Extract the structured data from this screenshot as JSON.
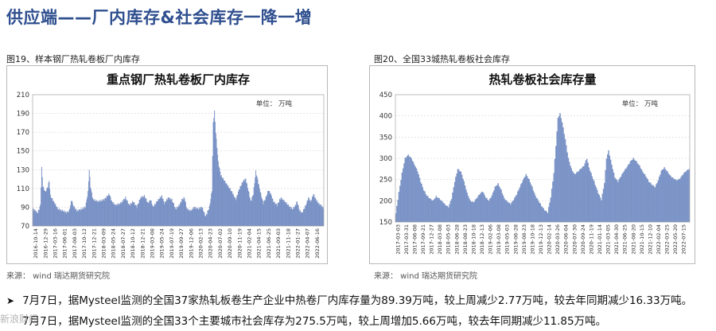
{
  "page_title": "供应端——厂内库存&社会库存一降一增",
  "figures": [
    {
      "caption": "图19、样本钢厂热轧卷板厂内库存",
      "source": "来源：  wind    瑞达期货研究院"
    },
    {
      "caption": "图20、全国33城热轧卷板社会库存",
      "source": "来源：  wind    瑞达期货研究院"
    }
  ],
  "bullets": [
    "7月7日，据Mysteel监测的全国37家热轧板卷生产企业中热卷厂内库存量为89.39万吨，较上周减少2.77万吨，较去年同期减少16.33万吨。",
    "7月7日，据Mysteel监测的全国33个主要城市社会库存为275.5万吨，较上周增加5.66万吨，较去年同期减少11.85万吨。"
  ],
  "watermark": "新浪财经",
  "colors": {
    "title": "#2f4f8f",
    "bar": "#7d96c9",
    "bar_edge": "#5a76b3",
    "grid": "#d6d6d6"
  },
  "chart_data": [
    {
      "type": "bar",
      "title": "重点钢厂热轧卷板厂内库存",
      "unit_label": "单位：  万吨",
      "ylim": [
        70,
        210
      ],
      "yticks": [
        70,
        90,
        110,
        130,
        150,
        170,
        190,
        210
      ],
      "xticks": [
        "2016-10-14",
        "2016-12-29",
        "2017-03-16",
        "2017-06-01",
        "2017-08-03",
        "2017-10-12",
        "2017-12-21",
        "2018-03-09",
        "2018-05-24",
        "2018-07-27",
        "2018-10-12",
        "2018-12-21",
        "2019-03-08",
        "2019-05-24",
        "2019-07-19",
        "2019-09-27",
        "2019-12-06",
        "2020-02-13",
        "2020-04-23",
        "2020-07-02",
        "2020-09-10",
        "2020-11-19",
        "2021-02-04",
        "2021-04-15",
        "2021-06-25",
        "2021-09-03",
        "2021-11-18",
        "2022-01-27",
        "2022-04-07",
        "2022-06-16"
      ],
      "series": [
        {
          "name": "厂内库存",
          "anchors": [
            [
              0,
              88
            ],
            [
              4,
              86
            ],
            [
              8,
              84
            ],
            [
              12,
              92
            ],
            [
              14,
              132
            ],
            [
              16,
              112
            ],
            [
              20,
              106
            ],
            [
              24,
              112
            ],
            [
              26,
              118
            ],
            [
              28,
              102
            ],
            [
              34,
              95
            ],
            [
              40,
              88
            ],
            [
              48,
              86
            ],
            [
              54,
              84
            ],
            [
              58,
              86
            ],
            [
              62,
              98
            ],
            [
              64,
              92
            ],
            [
              70,
              86
            ],
            [
              78,
              88
            ],
            [
              84,
              90
            ],
            [
              88,
              106
            ],
            [
              90,
              130
            ],
            [
              92,
              112
            ],
            [
              96,
              98
            ],
            [
              104,
              96
            ],
            [
              114,
              98
            ],
            [
              122,
              104
            ],
            [
              126,
              96
            ],
            [
              132,
              92
            ],
            [
              140,
              94
            ],
            [
              148,
              100
            ],
            [
              154,
              92
            ],
            [
              160,
              96
            ],
            [
              166,
              90
            ],
            [
              172,
              100
            ],
            [
              178,
              102
            ],
            [
              184,
              94
            ],
            [
              188,
              98
            ],
            [
              192,
              90
            ],
            [
              198,
              96
            ],
            [
              206,
              102
            ],
            [
              210,
              94
            ],
            [
              216,
              100
            ],
            [
              222,
              98
            ],
            [
              228,
              88
            ],
            [
              234,
              92
            ],
            [
              238,
              98
            ],
            [
              242,
              100
            ],
            [
              246,
              88
            ],
            [
              252,
              86
            ],
            [
              258,
              90
            ],
            [
              264,
              88
            ],
            [
              270,
              90
            ],
            [
              276,
              80
            ],
            [
              282,
              90
            ],
            [
              286,
              108
            ],
            [
              288,
              180
            ],
            [
              290,
              192
            ],
            [
              292,
              170
            ],
            [
              296,
              138
            ],
            [
              300,
              124
            ],
            [
              306,
              118
            ],
            [
              312,
              112
            ],
            [
              318,
              106
            ],
            [
              324,
              98
            ],
            [
              330,
              110
            ],
            [
              336,
              118
            ],
            [
              340,
              120
            ],
            [
              344,
              108
            ],
            [
              348,
              96
            ],
            [
              352,
              104
            ],
            [
              356,
              128
            ],
            [
              360,
              116
            ],
            [
              364,
              104
            ],
            [
              368,
              94
            ],
            [
              372,
              100
            ],
            [
              376,
              108
            ],
            [
              380,
              104
            ],
            [
              384,
              96
            ],
            [
              390,
              92
            ],
            [
              396,
              100
            ],
            [
              402,
              96
            ],
            [
              408,
              92
            ],
            [
              414,
              88
            ],
            [
              418,
              90
            ],
            [
              422,
              96
            ],
            [
              426,
              86
            ],
            [
              430,
              84
            ],
            [
              436,
              92
            ],
            [
              440,
              100
            ],
            [
              444,
              96
            ],
            [
              448,
              104
            ],
            [
              452,
              98
            ],
            [
              456,
              94
            ],
            [
              460,
              92
            ],
            [
              464,
              89
            ]
          ]
        }
      ]
    },
    {
      "type": "bar",
      "title": "热轧卷板社会库存量",
      "unit_label": "单位：  万吨",
      "ylim": [
        150,
        450
      ],
      "yticks": [
        150,
        200,
        250,
        300,
        350,
        400,
        450
      ],
      "xticks": [
        "2017-03-03",
        "2017-03-31",
        "2017-06-08",
        "2017-09-21",
        "2017-12-27",
        "2018-03-08",
        "2018-05-03",
        "2018-06-28",
        "2018-08-23",
        "2018-10-18",
        "2018-12-13",
        "2019-02-06",
        "2019-03-08",
        "2019-05-03",
        "2019-06-28",
        "2019-08-23",
        "2019-10-18",
        "2019-12-13",
        "2020-02-14",
        "2020-03-26",
        "2020-06-04",
        "2020-07-30",
        "2020-09-24",
        "2020-11-19",
        "2021-01-14",
        "2021-03-05",
        "2021-04-30",
        "2021-06-25",
        "2021-08-20",
        "2021-10-15",
        "2021-12-10",
        "2022-02-04",
        "2022-03-25",
        "2022-05-20",
        "2022-07-15"
      ],
      "series": [
        {
          "name": "社会库存",
          "anchors": [
            [
              0,
              170
            ],
            [
              3,
              220
            ],
            [
              6,
              265
            ],
            [
              9,
              300
            ],
            [
              12,
              308
            ],
            [
              15,
              300
            ],
            [
              18,
              285
            ],
            [
              21,
              270
            ],
            [
              24,
              245
            ],
            [
              27,
              225
            ],
            [
              30,
              212
            ],
            [
              33,
              205
            ],
            [
              36,
              200
            ],
            [
              39,
              210
            ],
            [
              42,
              205
            ],
            [
              45,
              198
            ],
            [
              48,
              190
            ],
            [
              51,
              185
            ],
            [
              54,
              205
            ],
            [
              57,
              245
            ],
            [
              60,
              275
            ],
            [
              63,
              268
            ],
            [
              66,
              245
            ],
            [
              69,
              218
            ],
            [
              72,
              200
            ],
            [
              75,
              196
            ],
            [
              78,
              205
            ],
            [
              81,
              215
            ],
            [
              84,
              222
            ],
            [
              87,
              208
            ],
            [
              90,
              200
            ],
            [
              93,
              212
            ],
            [
              96,
              232
            ],
            [
              99,
              240
            ],
            [
              102,
              225
            ],
            [
              105,
              205
            ],
            [
              108,
              198
            ],
            [
              111,
              192
            ],
            [
              114,
              202
            ],
            [
              117,
              215
            ],
            [
              120,
              232
            ],
            [
              123,
              248
            ],
            [
              126,
              262
            ],
            [
              129,
              250
            ],
            [
              132,
              232
            ],
            [
              135,
              212
            ],
            [
              138,
              200
            ],
            [
              141,
              188
            ],
            [
              144,
              178
            ],
            [
              147,
              172
            ],
            [
              150,
              208
            ],
            [
              153,
              265
            ],
            [
              155,
              330
            ],
            [
              157,
              395
            ],
            [
              159,
              405
            ],
            [
              161,
              385
            ],
            [
              164,
              345
            ],
            [
              167,
              300
            ],
            [
              170,
              275
            ],
            [
              173,
              262
            ],
            [
              176,
              268
            ],
            [
              179,
              275
            ],
            [
              182,
              282
            ],
            [
              185,
              300
            ],
            [
              187,
              278
            ],
            [
              190,
              258
            ],
            [
              193,
              238
            ],
            [
              196,
              218
            ],
            [
              199,
              202
            ],
            [
              202,
              242
            ],
            [
              204,
              300
            ],
            [
              206,
              318
            ],
            [
              209,
              285
            ],
            [
              212,
              255
            ],
            [
              215,
              245
            ],
            [
              218,
              258
            ],
            [
              221,
              270
            ],
            [
              224,
              280
            ],
            [
              227,
              292
            ],
            [
              230,
              300
            ],
            [
              233,
              292
            ],
            [
              236,
              282
            ],
            [
              239,
              268
            ],
            [
              242,
              258
            ],
            [
              245,
              245
            ],
            [
              248,
              238
            ],
            [
              251,
              232
            ],
            [
              254,
              248
            ],
            [
              257,
              270
            ],
            [
              260,
              278
            ],
            [
              263,
              268
            ],
            [
              266,
              258
            ],
            [
              269,
              252
            ],
            [
              272,
              248
            ],
            [
              275,
              252
            ],
            [
              278,
              262
            ],
            [
              281,
              270
            ],
            [
              284,
              275
            ]
          ]
        }
      ]
    }
  ]
}
